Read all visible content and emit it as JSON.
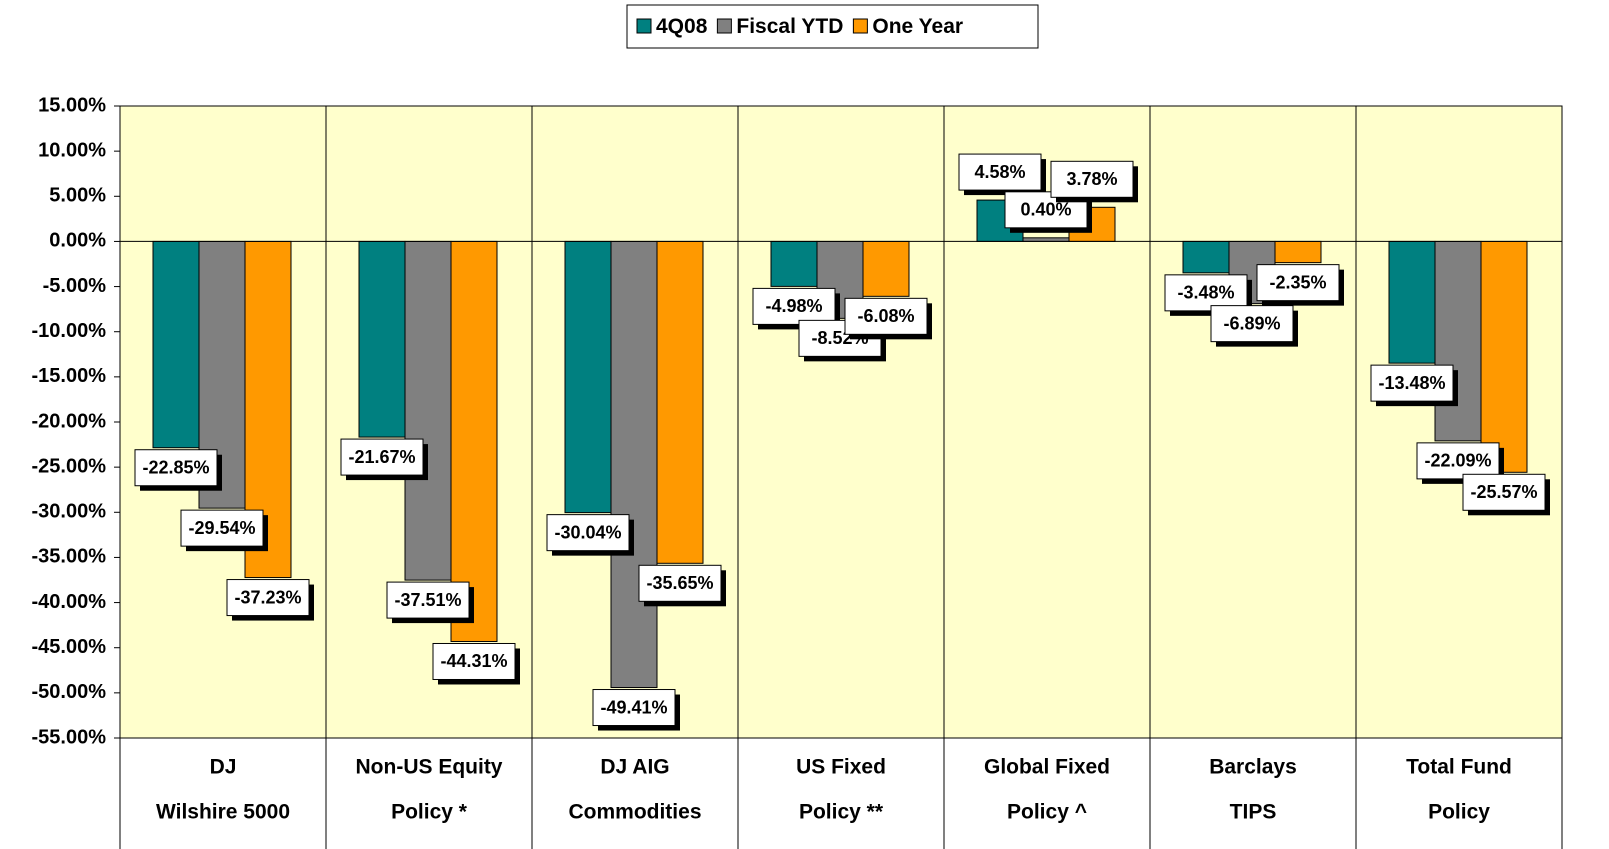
{
  "chart_data": {
    "type": "bar",
    "categories": [
      [
        "DJ",
        "Wilshire 5000"
      ],
      [
        "Non-US Equity",
        "Policy  *"
      ],
      [
        "DJ AIG",
        "Commodities"
      ],
      [
        "US Fixed",
        "Policy **"
      ],
      [
        "Global Fixed",
        "Policy ^"
      ],
      [
        "Barclays",
        "TIPS"
      ],
      [
        "Total Fund",
        "Policy"
      ]
    ],
    "series": [
      {
        "name": "4Q08",
        "color": "#008080",
        "values": [
          -22.85,
          -21.67,
          -30.04,
          -4.98,
          4.58,
          -3.48,
          -13.48
        ],
        "value_labels": [
          "-22.85%",
          "-21.67%",
          "-30.04%",
          "-4.98%",
          "4.58%",
          "-3.48%",
          "-13.48%"
        ]
      },
      {
        "name": "Fiscal YTD",
        "color": "#808080",
        "values": [
          -29.54,
          -37.51,
          -49.41,
          -8.52,
          0.4,
          -6.89,
          -22.09
        ],
        "value_labels": [
          "-29.54%",
          "-37.51%",
          "-49.41%",
          "-8.52%",
          "0.40%",
          "-6.89%",
          "-22.09%"
        ]
      },
      {
        "name": "One Year",
        "color": "#FF9900",
        "values": [
          -37.23,
          -44.31,
          -35.65,
          -6.08,
          3.78,
          -2.35,
          -25.57
        ],
        "value_labels": [
          "-37.23%",
          "-44.31%",
          "-35.65%",
          "-6.08%",
          "3.78%",
          "-2.35%",
          "-25.57%"
        ]
      }
    ],
    "ylim": [
      -55,
      15
    ],
    "yticks": [
      {
        "value": 15,
        "label": "15.00%"
      },
      {
        "value": 10,
        "label": "10.00%"
      },
      {
        "value": 5,
        "label": "5.00%"
      },
      {
        "value": 0,
        "label": "0.00%"
      },
      {
        "value": -5,
        "label": "-5.00%"
      },
      {
        "value": -10,
        "label": "-10.00%"
      },
      {
        "value": -15,
        "label": "-15.00%"
      },
      {
        "value": -20,
        "label": "-20.00%"
      },
      {
        "value": -25,
        "label": "-25.00%"
      },
      {
        "value": -30,
        "label": "-30.00%"
      },
      {
        "value": -35,
        "label": "-35.00%"
      },
      {
        "value": -40,
        "label": "-40.00%"
      },
      {
        "value": -45,
        "label": "-45.00%"
      },
      {
        "value": -50,
        "label": "-50.00%"
      },
      {
        "value": -55,
        "label": "-55.00%"
      }
    ],
    "legend": "top",
    "plot_background": "#FFFFCC"
  }
}
